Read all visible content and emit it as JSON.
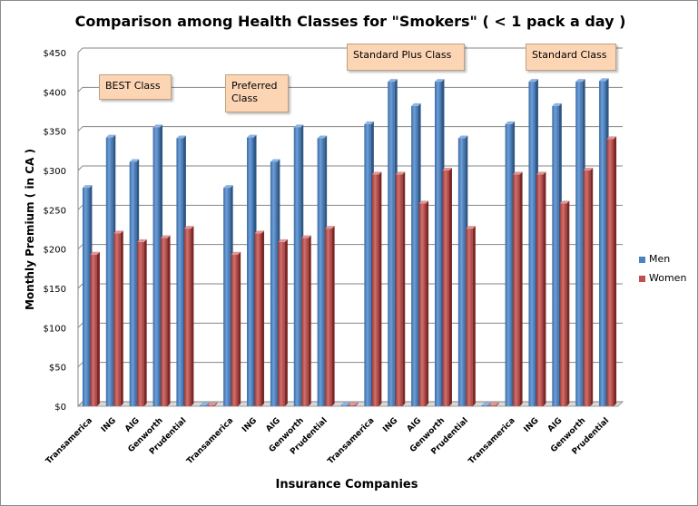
{
  "chart_data": {
    "type": "bar",
    "title": "Comparison among Health Classes for \"Smokers\" ( < 1 pack a day )",
    "xlabel": "Insurance Companies",
    "ylabel": "Monthly Premium ( in CA )",
    "ylim": [
      0,
      450
    ],
    "yticks": [
      "$0",
      "$50",
      "$100",
      "$150",
      "$200",
      "$250",
      "$300",
      "$350",
      "$400",
      "$450"
    ],
    "grid": true,
    "legend_position": "right",
    "categories": [
      "Transamerica",
      "ING",
      "AIG",
      "Genworth",
      "Prudential",
      "",
      "Transamerica",
      "ING",
      "AIG",
      "Genworth",
      "Prudential",
      "",
      "Transamerica",
      "ING",
      "AIG",
      "Genworth",
      "Prudential",
      "",
      "Transamerica",
      "ING",
      "AIG",
      "Genworth",
      "Prudential"
    ],
    "series": [
      {
        "name": "Men",
        "color": "#4f81bd",
        "values": [
          278,
          342,
          311,
          355,
          341,
          0,
          278,
          342,
          311,
          355,
          341,
          0,
          359,
          413,
          382,
          413,
          341,
          0,
          359,
          413,
          382,
          413,
          414
        ]
      },
      {
        "name": "Women",
        "color": "#c0504d",
        "values": [
          193,
          220,
          209,
          214,
          226,
          0,
          193,
          220,
          209,
          214,
          226,
          0,
          295,
          295,
          258,
          300,
          226,
          0,
          295,
          295,
          258,
          300,
          340
        ]
      }
    ],
    "annotations": [
      {
        "text": "BEST Class"
      },
      {
        "text": "Preferred Class"
      },
      {
        "text": "Standard Plus Class"
      },
      {
        "text": "Standard Class"
      }
    ]
  }
}
